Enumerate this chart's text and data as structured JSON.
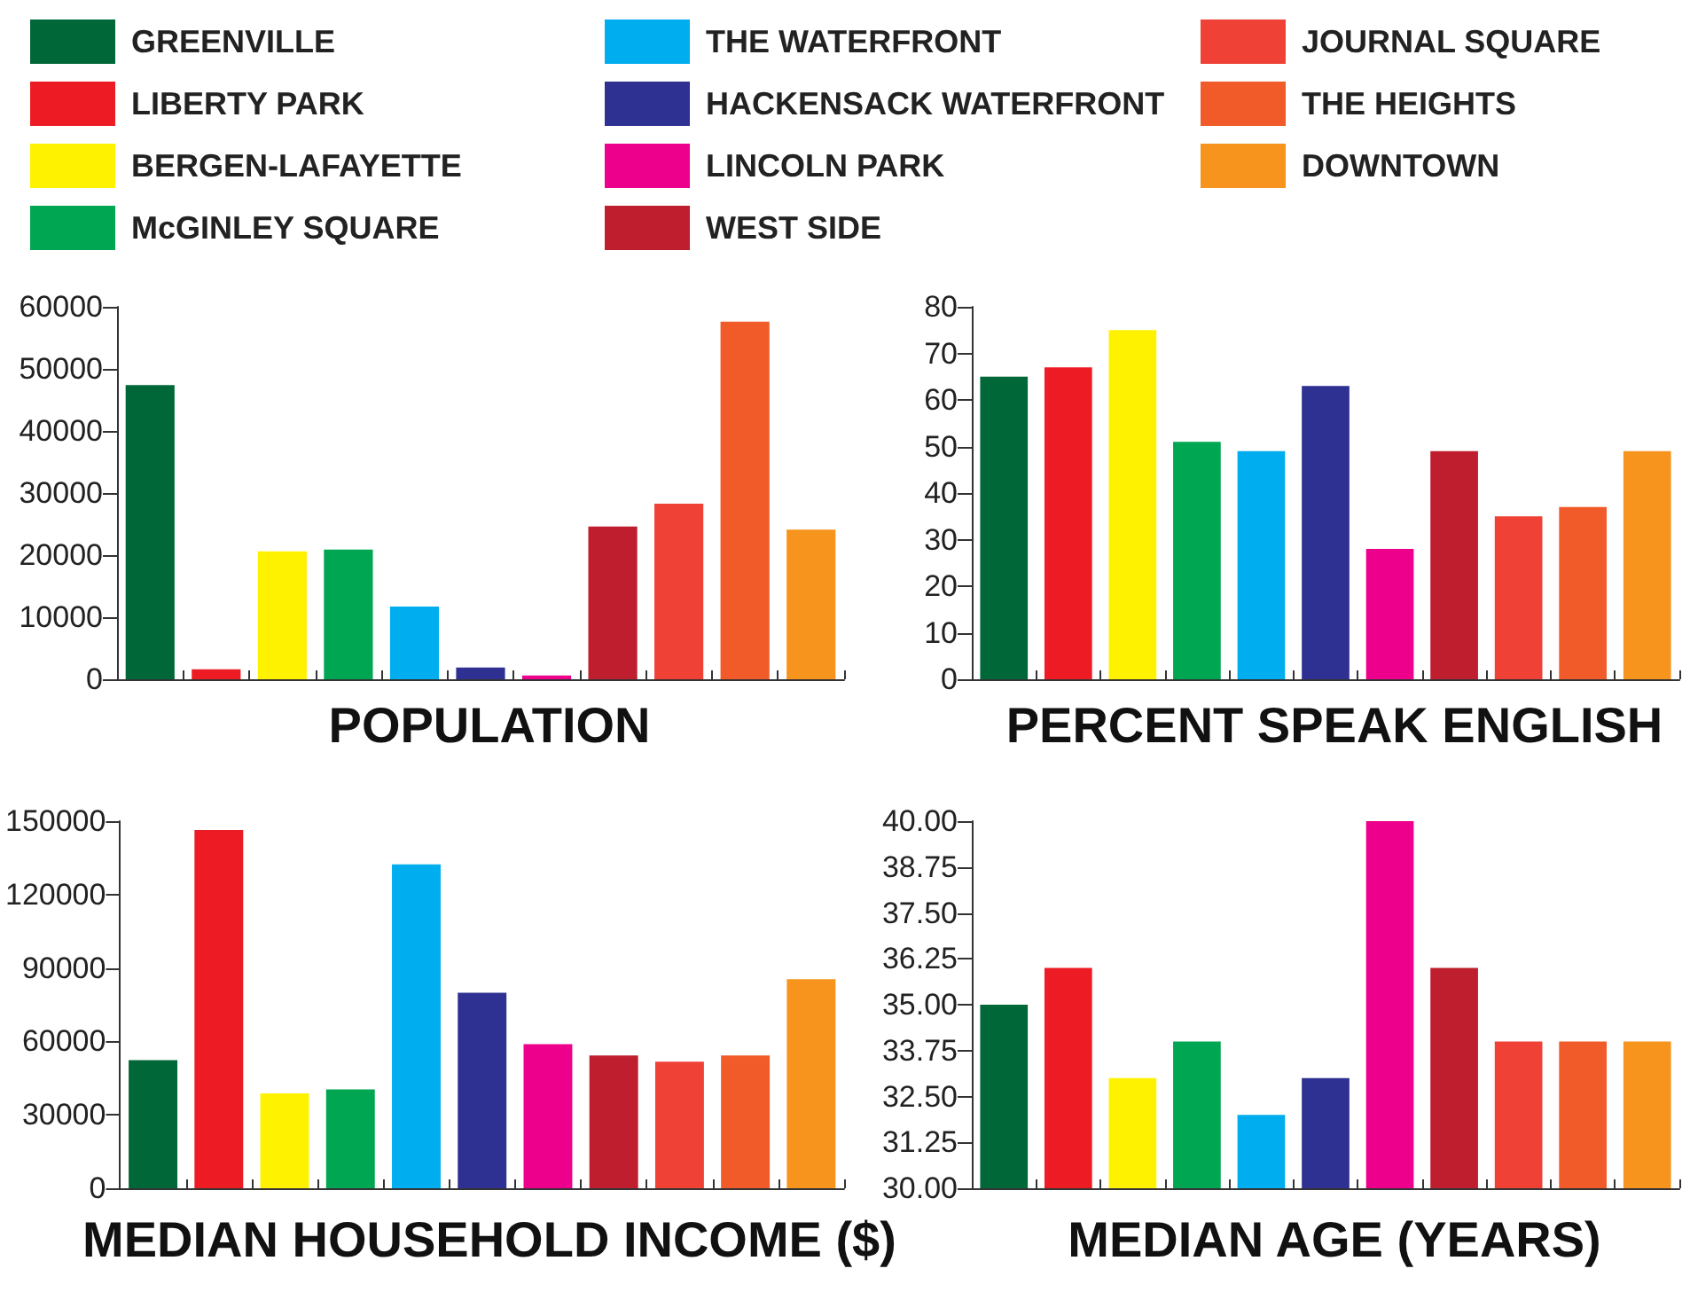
{
  "chart_data": [
    {
      "type": "bar",
      "title": "POPULATION",
      "legend": "top",
      "tick_labels": "y",
      "categories": [
        null,
        null,
        null,
        null,
        null,
        null,
        null,
        null,
        null,
        null,
        null
      ],
      "series": [
        {
          "name": "GREENVILLE",
          "color": "#006838",
          "values": [
            47400,
            null,
            null,
            null,
            null,
            null,
            null,
            null,
            null,
            null,
            null
          ]
        },
        {
          "name": "LIBERTY PARK",
          "color": "#ed1c24",
          "values": [
            null,
            1600,
            null,
            null,
            null,
            null,
            null,
            null,
            null,
            null,
            null
          ]
        },
        {
          "name": "BERGEN-LAFAYETTE",
          "color": "#fff200",
          "values": [
            null,
            null,
            20600,
            null,
            null,
            null,
            null,
            null,
            null,
            null,
            null
          ]
        },
        {
          "name": "McGINLEY SQUARE",
          "color": "#00a651",
          "values": [
            null,
            null,
            null,
            20900,
            null,
            null,
            null,
            null,
            null,
            null,
            null
          ]
        },
        {
          "name": "THE WATERFRONT",
          "color": "#00aeef",
          "values": [
            null,
            null,
            null,
            null,
            11700,
            null,
            null,
            null,
            null,
            null,
            null
          ]
        },
        {
          "name": "HACKENSACK WATERFRONT",
          "color": "#2e3192",
          "values": [
            null,
            null,
            null,
            null,
            null,
            1900,
            null,
            null,
            null,
            null,
            null
          ]
        },
        {
          "name": "LINCOLN PARK",
          "color": "#ec008c",
          "values": [
            null,
            null,
            null,
            null,
            null,
            null,
            600,
            null,
            null,
            null,
            null
          ]
        },
        {
          "name": "WEST SIDE",
          "color": "#be1e2d",
          "values": [
            null,
            null,
            null,
            null,
            null,
            null,
            null,
            24600,
            null,
            null,
            null
          ]
        },
        {
          "name": "JOURNAL SQUARE",
          "color": "#ef4136",
          "values": [
            null,
            null,
            null,
            null,
            null,
            null,
            null,
            null,
            28300,
            null,
            null
          ]
        },
        {
          "name": "THE HEIGHTS",
          "color": "#f15a29",
          "values": [
            null,
            null,
            null,
            null,
            null,
            null,
            null,
            null,
            null,
            57600,
            null
          ]
        },
        {
          "name": "DOWNTOWN",
          "color": "#f7941d",
          "values": [
            null,
            null,
            null,
            null,
            null,
            null,
            null,
            null,
            null,
            null,
            24100
          ]
        }
      ],
      "ylim": [
        0,
        60000
      ],
      "yticks": [
        0,
        10000,
        20000,
        30000,
        40000,
        50000,
        60000
      ]
    },
    {
      "type": "bar",
      "title": "PERCENT SPEAK ENGLISH",
      "tick_labels": "y",
      "categories": [
        null,
        null,
        null,
        null,
        null,
        null,
        null,
        null,
        null,
        null,
        null
      ],
      "series": [
        {
          "color": "#006838",
          "values": [
            65,
            null,
            null,
            null,
            null,
            null,
            null,
            null,
            null,
            null,
            null
          ]
        },
        {
          "color": "#ed1c24",
          "values": [
            null,
            67,
            null,
            null,
            null,
            null,
            null,
            null,
            null,
            null,
            null
          ]
        },
        {
          "color": "#fff200",
          "values": [
            null,
            null,
            75,
            null,
            null,
            null,
            null,
            null,
            null,
            null,
            null
          ]
        },
        {
          "color": "#00a651",
          "values": [
            null,
            null,
            null,
            51,
            null,
            null,
            null,
            null,
            null,
            null,
            null
          ]
        },
        {
          "color": "#00aeef",
          "values": [
            null,
            null,
            null,
            null,
            49,
            null,
            null,
            null,
            null,
            null,
            null
          ]
        },
        {
          "color": "#2e3192",
          "values": [
            null,
            null,
            null,
            null,
            null,
            63,
            null,
            null,
            null,
            null,
            null
          ]
        },
        {
          "color": "#ec008c",
          "values": [
            null,
            null,
            null,
            null,
            null,
            null,
            28,
            null,
            null,
            null,
            null
          ]
        },
        {
          "color": "#be1e2d",
          "values": [
            null,
            null,
            null,
            null,
            null,
            null,
            null,
            49,
            null,
            null,
            null
          ]
        },
        {
          "color": "#ef4136",
          "values": [
            null,
            null,
            null,
            null,
            null,
            null,
            null,
            null,
            35,
            null,
            null
          ]
        },
        {
          "color": "#f15a29",
          "values": [
            null,
            null,
            null,
            null,
            null,
            null,
            null,
            null,
            null,
            37,
            null
          ]
        },
        {
          "color": "#f7941d",
          "values": [
            null,
            null,
            null,
            null,
            null,
            null,
            null,
            null,
            null,
            null,
            49
          ]
        }
      ],
      "ylim": [
        0,
        80
      ],
      "yticks": [
        0,
        10,
        20,
        30,
        40,
        50,
        60,
        70,
        80
      ]
    },
    {
      "type": "bar",
      "title": "MEDIAN HOUSEHOLD INCOME ($)",
      "tick_labels": "y",
      "categories": [
        null,
        null,
        null,
        null,
        null,
        null,
        null,
        null,
        null,
        null,
        null
      ],
      "series": [
        {
          "color": "#006838",
          "values": [
            52400,
            null,
            null,
            null,
            null,
            null,
            null,
            null,
            null,
            null,
            null
          ]
        },
        {
          "color": "#ed1c24",
          "values": [
            null,
            146400,
            null,
            null,
            null,
            null,
            null,
            null,
            null,
            null,
            null
          ]
        },
        {
          "color": "#fff200",
          "values": [
            null,
            null,
            38800,
            null,
            null,
            null,
            null,
            null,
            null,
            null,
            null
          ]
        },
        {
          "color": "#00a651",
          "values": [
            null,
            null,
            null,
            40400,
            null,
            null,
            null,
            null,
            null,
            null,
            null
          ]
        },
        {
          "color": "#00aeef",
          "values": [
            null,
            null,
            null,
            null,
            132300,
            null,
            null,
            null,
            null,
            null,
            null
          ]
        },
        {
          "color": "#2e3192",
          "values": [
            null,
            null,
            null,
            null,
            null,
            79900,
            null,
            null,
            null,
            null,
            null
          ]
        },
        {
          "color": "#ec008c",
          "values": [
            null,
            null,
            null,
            null,
            null,
            null,
            58900,
            null,
            null,
            null,
            null
          ]
        },
        {
          "color": "#be1e2d",
          "values": [
            null,
            null,
            null,
            null,
            null,
            null,
            null,
            54300,
            null,
            null,
            null
          ]
        },
        {
          "color": "#ef4136",
          "values": [
            null,
            null,
            null,
            null,
            null,
            null,
            null,
            null,
            51700,
            null,
            null
          ]
        },
        {
          "color": "#f15a29",
          "values": [
            null,
            null,
            null,
            null,
            null,
            null,
            null,
            null,
            null,
            54300,
            null
          ]
        },
        {
          "color": "#f7941d",
          "values": [
            null,
            null,
            null,
            null,
            null,
            null,
            null,
            null,
            null,
            null,
            85400
          ]
        }
      ],
      "ylim": [
        0,
        150000
      ],
      "yticks": [
        0,
        30000,
        60000,
        90000,
        120000,
        150000
      ]
    },
    {
      "type": "bar",
      "title": "MEDIAN AGE (YEARS)",
      "tick_labels": "y",
      "categories": [
        null,
        null,
        null,
        null,
        null,
        null,
        null,
        null,
        null,
        null,
        null
      ],
      "series": [
        {
          "color": "#006838",
          "values": [
            35.0,
            null,
            null,
            null,
            null,
            null,
            null,
            null,
            null,
            null,
            null
          ]
        },
        {
          "color": "#ed1c24",
          "values": [
            null,
            36.0,
            null,
            null,
            null,
            null,
            null,
            null,
            null,
            null,
            null
          ]
        },
        {
          "color": "#fff200",
          "values": [
            null,
            null,
            33.0,
            null,
            null,
            null,
            null,
            null,
            null,
            null,
            null
          ]
        },
        {
          "color": "#00a651",
          "values": [
            null,
            null,
            null,
            34.0,
            null,
            null,
            null,
            null,
            null,
            null,
            null
          ]
        },
        {
          "color": "#00aeef",
          "values": [
            null,
            null,
            null,
            null,
            32.0,
            null,
            null,
            null,
            null,
            null,
            null
          ]
        },
        {
          "color": "#2e3192",
          "values": [
            null,
            null,
            null,
            null,
            null,
            33.0,
            null,
            null,
            null,
            null,
            null
          ]
        },
        {
          "color": "#ec008c",
          "values": [
            null,
            null,
            null,
            null,
            null,
            null,
            40.0,
            null,
            null,
            null,
            null
          ]
        },
        {
          "color": "#be1e2d",
          "values": [
            null,
            null,
            null,
            null,
            null,
            null,
            null,
            36.0,
            null,
            null,
            null
          ]
        },
        {
          "color": "#ef4136",
          "values": [
            null,
            null,
            null,
            null,
            null,
            null,
            null,
            null,
            34.0,
            null,
            null
          ]
        },
        {
          "color": "#f15a29",
          "values": [
            null,
            null,
            null,
            null,
            null,
            null,
            null,
            null,
            null,
            34.0,
            null
          ]
        },
        {
          "color": "#f7941d",
          "values": [
            null,
            null,
            null,
            null,
            null,
            null,
            null,
            null,
            null,
            null,
            34.0
          ]
        }
      ],
      "ylim": [
        30,
        40
      ],
      "yticks": [
        {
          "value": 30,
          "label": "30.00"
        },
        31.25,
        {
          "value": 32.5,
          "label": "32.50"
        },
        33.75,
        {
          "value": 35,
          "label": "35.00"
        },
        36.25,
        {
          "value": 37.5,
          "label": "37.50"
        },
        38.75,
        {
          "value": 40,
          "label": "40.00"
        }
      ]
    }
  ]
}
